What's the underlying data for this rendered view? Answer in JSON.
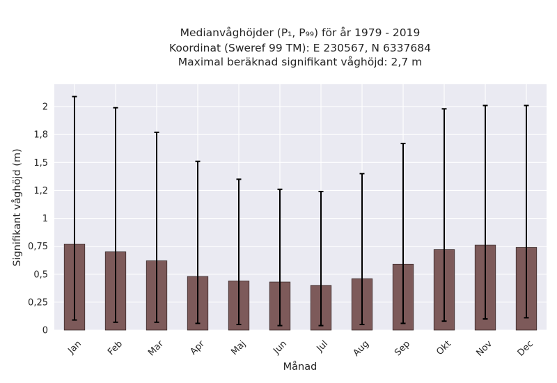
{
  "chart_data": {
    "type": "bar",
    "title_lines": [
      "Medianvåghöjder (P₁, P₉₉) för år 1979 - 2019",
      "Koordinat (Sweref 99 TM): E 230567, N 6337684",
      "Maximal beräknad signifikant våghöjd: 2,7 m"
    ],
    "xlabel": "Månad",
    "ylabel": "Signifikant våghöjd (m)",
    "categories": [
      "Jan",
      "Feb",
      "Mar",
      "Apr",
      "Maj",
      "Jun",
      "Jul",
      "Aug",
      "Sep",
      "Okt",
      "Nov",
      "Dec"
    ],
    "values": [
      0.77,
      0.7,
      0.62,
      0.48,
      0.44,
      0.43,
      0.4,
      0.46,
      0.59,
      0.72,
      0.76,
      0.74
    ],
    "error_low": [
      0.09,
      0.07,
      0.07,
      0.06,
      0.05,
      0.04,
      0.04,
      0.05,
      0.06,
      0.08,
      0.1,
      0.11
    ],
    "error_high": [
      2.09,
      1.99,
      1.77,
      1.51,
      1.35,
      1.26,
      1.24,
      1.4,
      1.67,
      1.98,
      2.01,
      2.01
    ],
    "ylim": [
      0,
      2.2
    ],
    "yticks": [
      0,
      0.25,
      0.5,
      0.75,
      1,
      1.25,
      1.5,
      1.75,
      2
    ],
    "ytick_labels": [
      "0",
      "0,25",
      "0,5",
      "0,75",
      "1",
      "1,2",
      "1,5",
      "1,8",
      "2"
    ],
    "grid": true,
    "colors": {
      "bar": "#7d5a5a",
      "bar_edge": "#3a2a2a",
      "error_bar": "#000000",
      "plot_background": "#eaeaf2",
      "grid": "#ffffff"
    }
  }
}
